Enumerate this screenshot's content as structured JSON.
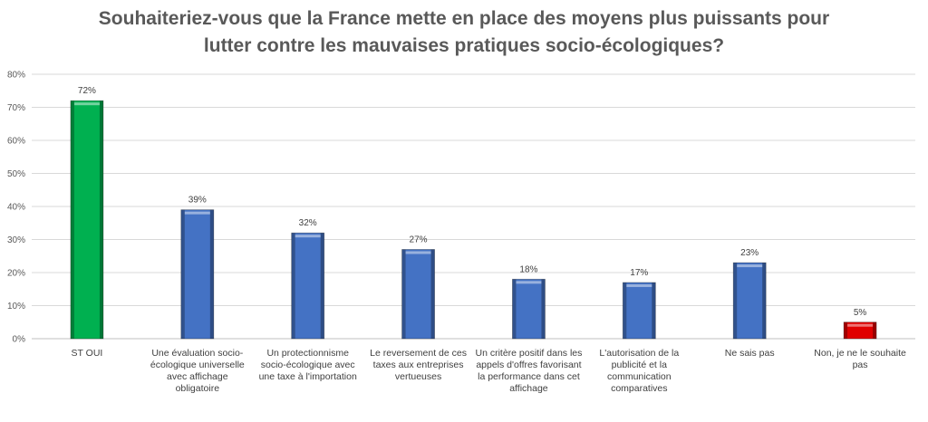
{
  "chart_data": {
    "type": "bar",
    "title_lines": [
      "Souhaiteriez-vous que la France mette en place des moyens plus puissants pour",
      "lutter contre les mauvaises pratiques socio-écologiques?"
    ],
    "categories": [
      "ST OUI",
      "Une évaluation socio-écologique universelle avec affichage obligatoire",
      "Un protectionnisme socio-écologique avec une taxe à l'importation",
      "Le reversement de ces taxes aux entreprises vertueuses",
      "Un critère positif dans les appels d'offres favorisant la performance dans cet affichage",
      "L'autorisation de la publicité et la communication comparatives",
      "Ne sais pas",
      "Non, je ne le souhaite pas"
    ],
    "values": [
      72,
      39,
      32,
      27,
      18,
      17,
      23,
      5
    ],
    "value_labels": [
      "72%",
      "39%",
      "32%",
      "27%",
      "18%",
      "17%",
      "23%",
      "5%"
    ],
    "bar_colors": [
      "#00b050",
      "#4472c4",
      "#4472c4",
      "#4472c4",
      "#4472c4",
      "#4472c4",
      "#4472c4",
      "#e00000"
    ],
    "yticks": [
      "0%",
      "10%",
      "20%",
      "30%",
      "40%",
      "50%",
      "60%",
      "70%",
      "80%"
    ],
    "ylim": [
      0,
      80
    ],
    "grid": true,
    "xlabel": "",
    "ylabel": ""
  }
}
